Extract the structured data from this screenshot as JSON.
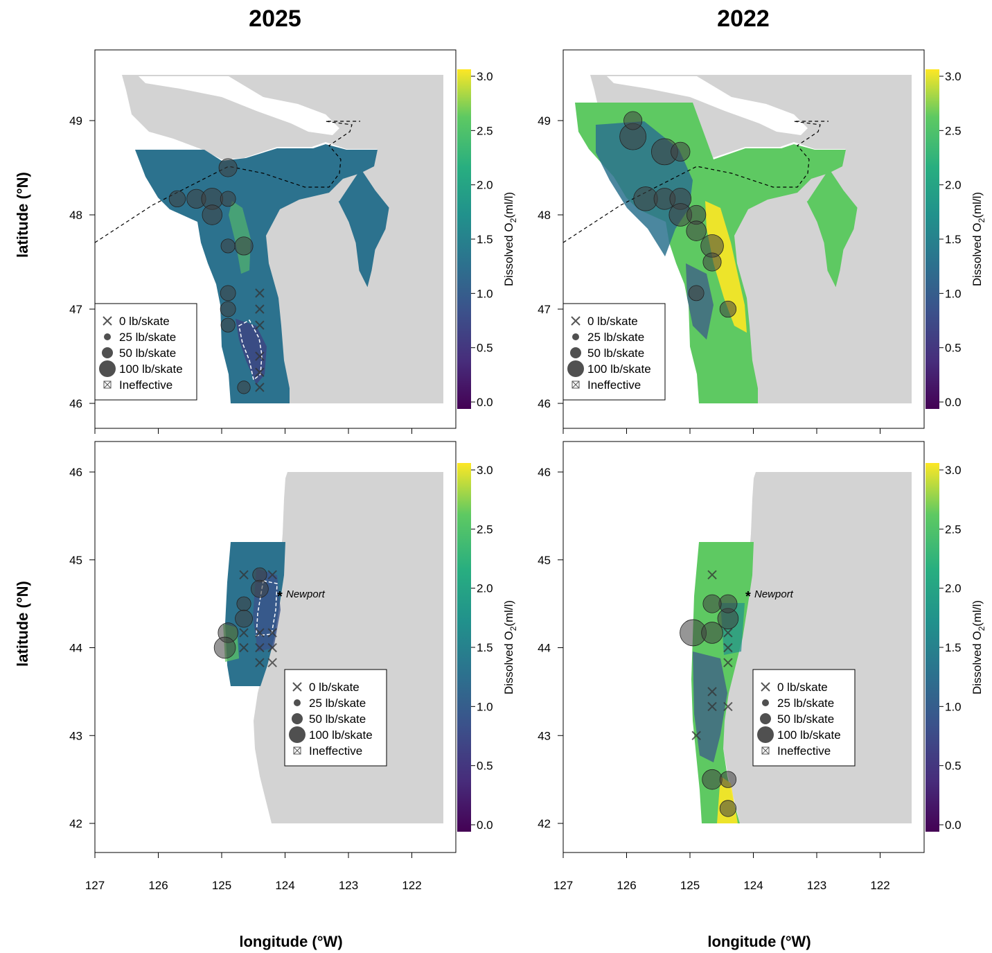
{
  "figure": {
    "column_titles": [
      "2025",
      "2022"
    ],
    "y_label": "latitude (°N)",
    "x_label": "longitude (°W)",
    "colorbar_label": "Dissolved O",
    "colorbar_label_sub": "2",
    "colorbar_label_unit": "(ml/l)",
    "colorbar_ticks": [
      "0.0",
      "0.5",
      "1.0",
      "1.5",
      "2.0",
      "2.5",
      "3.0"
    ],
    "colorbar_range": [
      0,
      3.0
    ],
    "colormap": "viridis",
    "x_ticks": [
      "127",
      "126",
      "125",
      "124",
      "123",
      "122"
    ],
    "top_y_ticks": [
      "46",
      "47",
      "48",
      "49"
    ],
    "bottom_y_ticks": [
      "42",
      "43",
      "44",
      "45",
      "46"
    ],
    "legend_items": [
      {
        "symbol": "cross",
        "label": "0 lb/skate"
      },
      {
        "symbol": "circle-small",
        "label": "25 lb/skate"
      },
      {
        "symbol": "circle-medium",
        "label": "50 lb/skate"
      },
      {
        "symbol": "circle-large",
        "label": "100 lb/skate"
      },
      {
        "symbol": "boxed-cross",
        "label": "Ineffective"
      }
    ],
    "place_label": "Newport",
    "place_marker": "asterisk",
    "land_color": "#d3d3d3",
    "hypoxia_contour_color": "#ffffff",
    "border_line_style": "dashed"
  },
  "panels": [
    {
      "year": "2025",
      "region": "Washington",
      "dominant_o2_ml_l": 1.4,
      "stations": [
        {
          "lon": 125.7,
          "lat": 48.17,
          "catch": 30
        },
        {
          "lon": 125.4,
          "lat": 48.17,
          "catch": 45
        },
        {
          "lon": 125.15,
          "lat": 48.17,
          "catch": 60
        },
        {
          "lon": 124.9,
          "lat": 48.17,
          "catch": 25
        },
        {
          "lon": 125.15,
          "lat": 48.0,
          "catch": 50
        },
        {
          "lon": 124.9,
          "lat": 48.5,
          "catch": 40
        },
        {
          "lon": 124.9,
          "lat": 47.67,
          "catch": 20
        },
        {
          "lon": 124.65,
          "lat": 47.67,
          "catch": 40
        },
        {
          "lon": 124.9,
          "lat": 47.17,
          "catch": 25
        },
        {
          "lon": 124.9,
          "lat": 47.0,
          "catch": 25
        },
        {
          "lon": 124.9,
          "lat": 46.83,
          "catch": 20
        },
        {
          "lon": 124.4,
          "lat": 47.17,
          "catch": 0
        },
        {
          "lon": 124.4,
          "lat": 47.0,
          "catch": 0
        },
        {
          "lon": 124.4,
          "lat": 46.83,
          "catch": 0
        },
        {
          "lon": 124.4,
          "lat": 46.5,
          "catch": 0
        },
        {
          "lon": 124.4,
          "lat": 46.33,
          "catch": 0
        },
        {
          "lon": 124.4,
          "lat": 46.17,
          "catch": 0
        },
        {
          "lon": 124.65,
          "lat": 46.17,
          "catch": 15
        }
      ]
    },
    {
      "year": "2022",
      "region": "Washington",
      "dominant_o2_ml_l": 2.3,
      "stations": [
        {
          "lon": 125.9,
          "lat": 48.83,
          "catch": 100
        },
        {
          "lon": 125.9,
          "lat": 49.0,
          "catch": 40
        },
        {
          "lon": 125.4,
          "lat": 48.67,
          "catch": 100
        },
        {
          "lon": 125.15,
          "lat": 48.67,
          "catch": 45
        },
        {
          "lon": 125.7,
          "lat": 48.17,
          "catch": 80
        },
        {
          "lon": 125.4,
          "lat": 48.17,
          "catch": 60
        },
        {
          "lon": 125.15,
          "lat": 48.17,
          "catch": 60
        },
        {
          "lon": 125.15,
          "lat": 48.0,
          "catch": 70
        },
        {
          "lon": 124.9,
          "lat": 48.0,
          "catch": 45
        },
        {
          "lon": 124.9,
          "lat": 47.83,
          "catch": 50
        },
        {
          "lon": 124.65,
          "lat": 47.67,
          "catch": 70
        },
        {
          "lon": 124.65,
          "lat": 47.5,
          "catch": 40
        },
        {
          "lon": 124.9,
          "lat": 47.17,
          "catch": 25
        },
        {
          "lon": 124.4,
          "lat": 47.0,
          "catch": 30
        }
      ]
    },
    {
      "year": "2025",
      "region": "Oregon",
      "dominant_o2_ml_l": 1.3,
      "stations": [
        {
          "lon": 124.65,
          "lat": 44.83,
          "catch": 0
        },
        {
          "lon": 124.4,
          "lat": 44.83,
          "catch": 20
        },
        {
          "lon": 124.2,
          "lat": 44.83,
          "catch": 0
        },
        {
          "lon": 124.4,
          "lat": 44.67,
          "catch": 35
        },
        {
          "lon": 124.65,
          "lat": 44.5,
          "catch": 20
        },
        {
          "lon": 124.65,
          "lat": 44.33,
          "catch": 35
        },
        {
          "lon": 124.9,
          "lat": 44.17,
          "catch": 50
        },
        {
          "lon": 124.95,
          "lat": 44.0,
          "catch": 60
        },
        {
          "lon": 124.65,
          "lat": 44.17,
          "catch": 0
        },
        {
          "lon": 124.4,
          "lat": 44.17,
          "catch": 0
        },
        {
          "lon": 124.2,
          "lat": 44.17,
          "catch": 0
        },
        {
          "lon": 124.65,
          "lat": 44.0,
          "catch": 0
        },
        {
          "lon": 124.4,
          "lat": 44.0,
          "catch": 0
        },
        {
          "lon": 124.2,
          "lat": 44.0,
          "catch": 0
        },
        {
          "lon": 124.4,
          "lat": 43.83,
          "catch": 0
        },
        {
          "lon": 124.2,
          "lat": 43.83,
          "catch": 0
        }
      ]
    },
    {
      "year": "2022",
      "region": "Oregon",
      "dominant_o2_ml_l": 2.2,
      "stations": [
        {
          "lon": 124.95,
          "lat": 44.17,
          "catch": 100
        },
        {
          "lon": 124.65,
          "lat": 44.17,
          "catch": 60
        },
        {
          "lon": 124.4,
          "lat": 44.33,
          "catch": 55
        },
        {
          "lon": 124.4,
          "lat": 44.5,
          "catch": 40
        },
        {
          "lon": 124.65,
          "lat": 44.5,
          "catch": 40
        },
        {
          "lon": 124.65,
          "lat": 44.83,
          "catch": 0
        },
        {
          "lon": 124.4,
          "lat": 44.17,
          "catch": 0
        },
        {
          "lon": 124.4,
          "lat": 44.0,
          "catch": 0
        },
        {
          "lon": 124.4,
          "lat": 43.83,
          "catch": 0
        },
        {
          "lon": 124.65,
          "lat": 43.5,
          "catch": 0
        },
        {
          "lon": 124.65,
          "lat": 43.33,
          "catch": 0
        },
        {
          "lon": 124.4,
          "lat": 43.33,
          "catch": 0
        },
        {
          "lon": 124.9,
          "lat": 43.0,
          "catch": 0
        },
        {
          "lon": 124.65,
          "lat": 42.5,
          "catch": 50
        },
        {
          "lon": 124.4,
          "lat": 42.5,
          "catch": 30
        },
        {
          "lon": 124.4,
          "lat": 42.17,
          "catch": 30
        }
      ]
    }
  ]
}
